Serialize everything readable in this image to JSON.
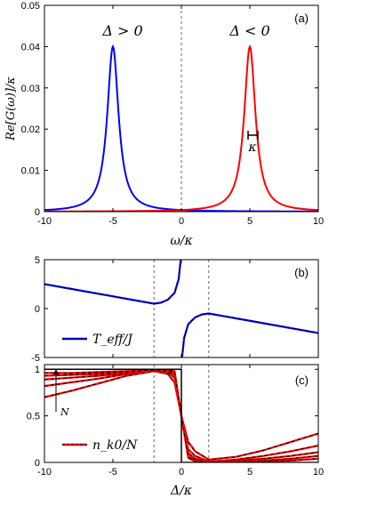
{
  "chart_data": [
    {
      "type": "line",
      "panel_label": "(a)",
      "xlabel": "ω/κ",
      "ylabel": "Re[G(ω)]/κ",
      "xlim": [
        -10,
        10
      ],
      "ylim": [
        0,
        0.05
      ],
      "xticks": [
        -10,
        -5,
        0,
        5,
        10
      ],
      "yticks": [
        0,
        0.01,
        0.02,
        0.03,
        0.04,
        0.05
      ],
      "xtick_labels": [
        "-10",
        "-5",
        "0",
        "5",
        "10"
      ],
      "ytick_labels": [
        "0",
        "0.01",
        "0.02",
        "0.03",
        "0.04",
        "0.05"
      ],
      "annotations": [
        "Δ > 0",
        "Δ < 0",
        "κ"
      ],
      "vline_dashed": [
        0
      ],
      "series": [
        {
          "color": "#0000ff",
          "center": -5,
          "peak": 0.04,
          "halfwidth": 0.5
        },
        {
          "color": "#ff0000",
          "center": 5,
          "peak": 0.04,
          "halfwidth": 0.5
        }
      ]
    },
    {
      "type": "line",
      "panel_label": "(b)",
      "xlim": [
        -10,
        10
      ],
      "ylim": [
        -5,
        5
      ],
      "yticks": [
        -5,
        0,
        5
      ],
      "ytick_labels": [
        "-5",
        "0",
        "5"
      ],
      "vline_dashed": [
        -2,
        2
      ],
      "legend": "T_eff/J",
      "legend_location": "bottom-left",
      "series": [
        {
          "color": "#0000ff",
          "dashed_overlay": "#000000",
          "x": [
            -10,
            -8,
            -6,
            -4,
            -2,
            -1.5,
            -1,
            -0.5,
            -0.2,
            -0.05,
            0.05,
            0.2,
            0.5,
            1,
            1.5,
            2,
            4,
            6,
            8,
            10
          ],
          "y": [
            2.5,
            2.0,
            1.5,
            1.0,
            0.5,
            0.6,
            0.9,
            1.6,
            3.0,
            5.0,
            -5.0,
            -3.0,
            -1.6,
            -0.9,
            -0.6,
            -0.5,
            -1.0,
            -1.5,
            -2.0,
            -2.5
          ]
        }
      ]
    },
    {
      "type": "line",
      "panel_label": "(c)",
      "xlabel": "Δ/κ",
      "xlim": [
        -10,
        10
      ],
      "ylim": [
        0,
        1.05
      ],
      "xticks": [
        -10,
        -5,
        0,
        5,
        10
      ],
      "yticks": [
        0,
        0.5,
        1
      ],
      "xtick_labels": [
        "-10",
        "-5",
        "0",
        "5",
        "10"
      ],
      "ytick_labels": [
        "0",
        "0.5",
        "1"
      ],
      "vline_dashed": [
        -2,
        2
      ],
      "arrow_label": "N",
      "legend": "n_k0/N",
      "legend_location": "bottom-left",
      "x": [
        -10,
        -8,
        -6,
        -4,
        -2,
        -1,
        -0.5,
        0,
        0.5,
        1,
        2,
        4,
        6,
        8,
        10
      ],
      "series": [
        {
          "color": "#ff0000",
          "y": [
            0.7,
            0.77,
            0.85,
            0.93,
            0.98,
            0.95,
            0.86,
            0.5,
            0.22,
            0.12,
            0.03,
            0.06,
            0.13,
            0.22,
            0.31
          ]
        },
        {
          "color": "#ff0000",
          "y": [
            0.82,
            0.86,
            0.9,
            0.95,
            0.99,
            0.97,
            0.91,
            0.5,
            0.14,
            0.07,
            0.01,
            0.03,
            0.07,
            0.12,
            0.18
          ]
        },
        {
          "color": "#ff0000",
          "y": [
            0.89,
            0.91,
            0.93,
            0.96,
            0.99,
            0.98,
            0.94,
            0.5,
            0.1,
            0.04,
            0.01,
            0.02,
            0.04,
            0.07,
            0.11
          ]
        },
        {
          "color": "#ff0000",
          "y": [
            0.93,
            0.94,
            0.95,
            0.97,
            0.99,
            0.99,
            0.96,
            0.5,
            0.07,
            0.02,
            0.0,
            0.01,
            0.02,
            0.04,
            0.07
          ]
        },
        {
          "color": "#ff0000",
          "y": [
            0.96,
            0.96,
            0.97,
            0.98,
            0.99,
            0.99,
            0.98,
            0.5,
            0.05,
            0.01,
            0.0,
            0.0,
            0.01,
            0.02,
            0.04
          ]
        },
        {
          "color": "#000000",
          "step": true,
          "y": [
            1,
            1,
            1,
            1,
            1,
            1,
            1,
            0.5,
            0,
            0,
            0,
            0,
            0,
            0,
            0
          ]
        }
      ]
    }
  ]
}
